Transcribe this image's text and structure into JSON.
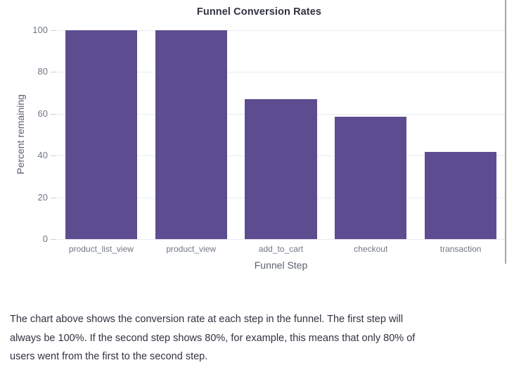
{
  "page": {
    "title": "Funnel Conversion Rates"
  },
  "chart_data": {
    "type": "bar",
    "title": "Funnel Conversion Rates",
    "categories": [
      "product_list_view",
      "product_view",
      "add_to_cart",
      "checkout",
      "transaction"
    ],
    "values": [
      100,
      100,
      66.8,
      58.5,
      41.7
    ],
    "xlabel": "Funnel Step",
    "ylabel": "Percent remaining",
    "ylim": [
      0,
      100
    ],
    "yticks": [
      0,
      20,
      40,
      60,
      80,
      100
    ],
    "grid": true,
    "legend": "none",
    "colors": {
      "bar": "#5d4d90",
      "gridline": "#e9edf3",
      "tick_mark": "#ccd1da",
      "tick_label": "#707784",
      "axis_title": "#5a6170",
      "title_text": "#31333f",
      "caption_text": "#31333f",
      "scrollbar": "#a5a5a5"
    }
  },
  "caption": {
    "lines": [
      "The chart above shows the conversion rate at each step in the funnel. The first step will",
      "always be 100%. If the second step shows 80%, for example, this means that only 80% of",
      "users went from the first to the second step."
    ]
  }
}
